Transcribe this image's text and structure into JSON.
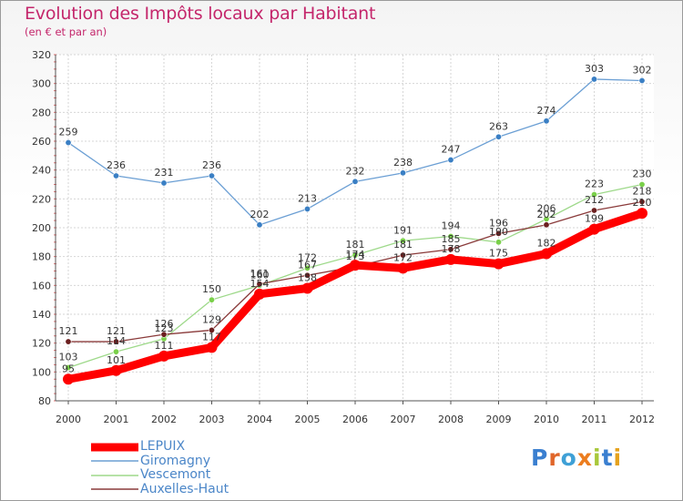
{
  "header": {
    "title": "Evolution des Impôts locaux par Habitant",
    "subtitle": "(en € et par an)"
  },
  "logo": {
    "text": "Proxiti",
    "letters": [
      {
        "char": "P",
        "color": "#3a7fd0"
      },
      {
        "char": "r",
        "color": "#e0662a"
      },
      {
        "char": "o",
        "color": "#3fa0d6"
      },
      {
        "char": "x",
        "color": "#ec7d1f"
      },
      {
        "char": "i",
        "color": "#a8c83a"
      },
      {
        "char": "t",
        "color": "#3a7fd0"
      },
      {
        "char": "i",
        "color": "#e5a21d"
      }
    ]
  },
  "chart_data": {
    "type": "line",
    "title": "Evolution des Impôts locaux par Habitant",
    "subtitle": "(en € et par an)",
    "xlabel": "",
    "ylabel": "",
    "x": [
      "2000",
      "2001",
      "2002",
      "2003",
      "2004",
      "2005",
      "2006",
      "2007",
      "2008",
      "2009",
      "2010",
      "2011",
      "2012"
    ],
    "ylim": [
      80,
      320
    ],
    "yticks": [
      80,
      100,
      120,
      140,
      160,
      180,
      200,
      220,
      240,
      260,
      280,
      300,
      320
    ],
    "grid": true,
    "legend_position": "bottom-left",
    "series": [
      {
        "name": "LEPUIX",
        "color": "#ff0000",
        "marker_color": "#ff0000",
        "values": [
          95,
          101,
          111,
          117,
          154,
          158,
          174,
          172,
          178,
          175,
          182,
          199,
          210
        ],
        "labels": [
          "95",
          "101",
          "111",
          "117",
          "154",
          "158",
          "174",
          "172",
          "178",
          "175",
          "182",
          "199",
          "210"
        ]
      },
      {
        "name": "Giromagny",
        "color": "#6b9fd4",
        "marker_color": "#3a7fc4",
        "values": [
          259,
          236,
          231,
          236,
          202,
          213,
          232,
          238,
          247,
          263,
          274,
          303,
          302
        ],
        "labels": [
          "259",
          "236",
          "231",
          "236",
          "202",
          "213",
          "232",
          "238",
          "247",
          "263",
          "274",
          "303",
          "302"
        ]
      },
      {
        "name": "Vescemont",
        "color": "#9ed98a",
        "marker_color": "#7ad04a",
        "values": [
          103,
          114,
          123,
          150,
          160,
          172,
          181,
          191,
          194,
          190,
          206,
          223,
          230
        ],
        "labels": [
          "103",
          "114",
          "123",
          "150",
          "160",
          "172",
          "181",
          "191",
          "194",
          "190",
          "206",
          "223",
          "230"
        ]
      },
      {
        "name": "Auxelles-Haut",
        "color": "#8a3a3a",
        "marker_color": "#6b1f1f",
        "values": [
          121,
          121,
          126,
          129,
          161,
          167,
          173,
          181,
          185,
          196,
          202,
          212,
          218
        ],
        "labels": [
          "121",
          "121",
          "126",
          "129",
          "161",
          "167",
          "173",
          "181",
          "185",
          "196",
          "202",
          "212",
          "218"
        ]
      }
    ]
  }
}
